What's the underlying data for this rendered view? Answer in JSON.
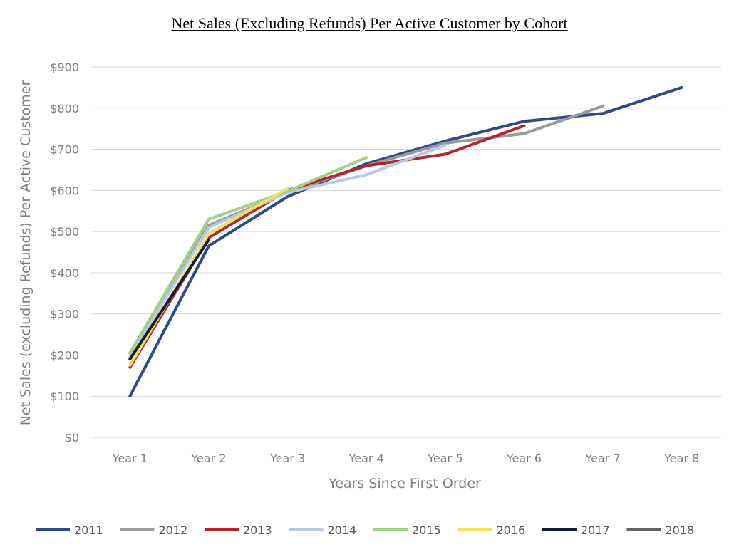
{
  "chart_data": {
    "type": "line",
    "title": "Net Sales (Excluding Refunds) Per Active Customer by Cohort",
    "xlabel": "Years Since First Order",
    "ylabel": "Net Sales (excluding Refunds) Per Active Customer",
    "categories": [
      "Year 1",
      "Year 2",
      "Year 3",
      "Year 4",
      "Year 5",
      "Year 6",
      "Year 7",
      "Year 8"
    ],
    "ylim": [
      0,
      900
    ],
    "yticks": [
      0,
      100,
      200,
      300,
      400,
      500,
      600,
      700,
      800,
      900
    ],
    "ytick_labels": [
      "$0",
      "$100",
      "$200",
      "$300",
      "$400",
      "$500",
      "$600",
      "$700",
      "$800",
      "$900"
    ],
    "grid": "horizontal",
    "legend": "bottom",
    "series": [
      {
        "name": "2011",
        "color": "#2f4a86",
        "values": [
          100,
          465,
          585,
          665,
          720,
          768,
          787,
          850
        ]
      },
      {
        "name": "2012",
        "color": "#9a9a9a",
        "values": [
          205,
          515,
          595,
          660,
          715,
          738,
          805,
          null
        ]
      },
      {
        "name": "2013",
        "color": "#b3262d",
        "values": [
          170,
          485,
          600,
          660,
          688,
          757,
          null,
          null
        ]
      },
      {
        "name": "2014",
        "color": "#b9c9e3",
        "values": [
          195,
          510,
          595,
          638,
          710,
          null,
          null,
          null
        ]
      },
      {
        "name": "2015",
        "color": "#a4cf85",
        "values": [
          205,
          530,
          598,
          680,
          null,
          null,
          null,
          null
        ]
      },
      {
        "name": "2016",
        "color": "#f0e35c",
        "values": [
          175,
          495,
          605,
          null,
          null,
          null,
          null,
          null
        ]
      },
      {
        "name": "2017",
        "color": "#141d33",
        "values": [
          190,
          480,
          null,
          null,
          null,
          null,
          null,
          null
        ]
      },
      {
        "name": "2018",
        "color": "#636363",
        "values": [
          195,
          null,
          null,
          null,
          null,
          null,
          null,
          null
        ]
      }
    ]
  }
}
